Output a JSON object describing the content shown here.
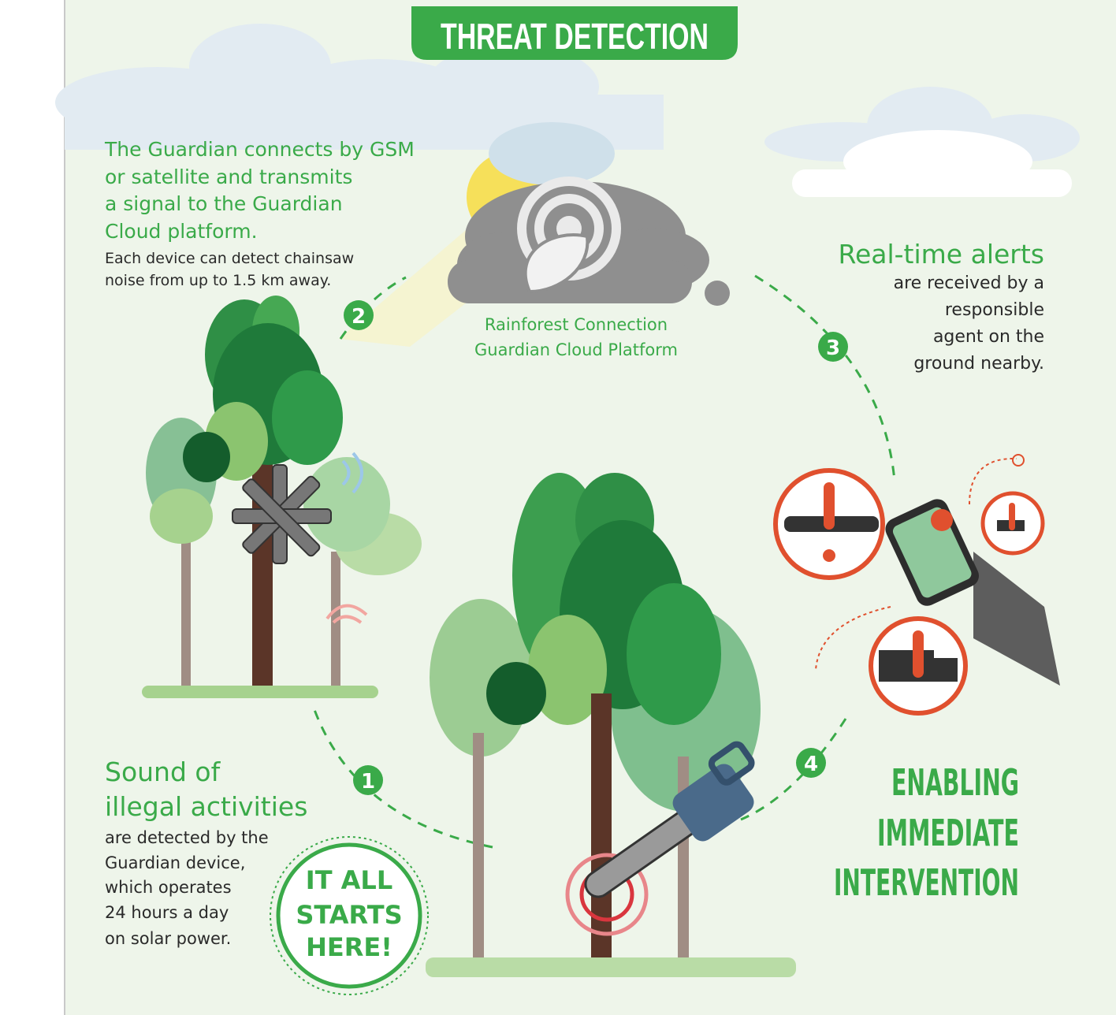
{
  "title": "THREAT DETECTION",
  "step2": {
    "number": "2",
    "heading": [
      "The Guardian connects by GSM",
      "or satellite and transmits",
      "a signal to the Guardian",
      "Cloud platform."
    ],
    "body": [
      "Each device can detect chainsaw",
      "noise from up to 1.5 km away."
    ]
  },
  "cloud_label": [
    "Rainforest Connection",
    "Guardian Cloud Platform"
  ],
  "step3": {
    "number": "3",
    "heading": "Real-time alerts",
    "body": [
      "are received by a",
      "responsible",
      "agent on the",
      "ground nearby."
    ]
  },
  "step1": {
    "number": "1",
    "heading": [
      "Sound of",
      "illegal activities"
    ],
    "body": [
      "are detected by the",
      "Guardian device,",
      "which operates",
      "24 hours a day",
      "on solar power."
    ]
  },
  "step4": {
    "number": "4"
  },
  "badge": [
    "IT ALL",
    "STARTS",
    "HERE!"
  ],
  "conclusion": [
    "ENABLING",
    "IMMEDIATE",
    "INTERVENTION"
  ]
}
